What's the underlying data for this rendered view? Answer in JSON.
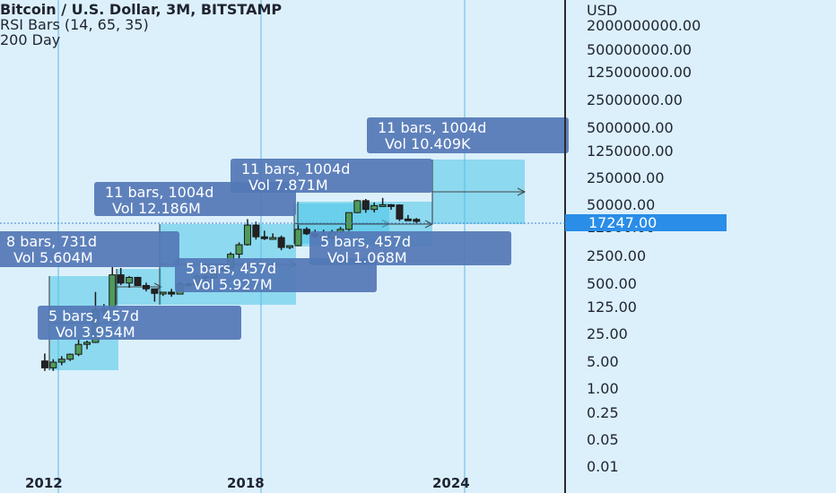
{
  "header": {
    "title": "Bitcoin / U.S. Dollar, 3M, BITSTAMP",
    "indicator": "RSI Bars (14, 65, 35)",
    "ma": "200 Day"
  },
  "price_axis": {
    "currency": "USD",
    "labels": [
      "2000000000.00",
      "500000000.00",
      "125000000.00",
      "25000000.00",
      "5000000.00",
      "1250000.00",
      "250000.00",
      "50000.00",
      "12500.00",
      "2500.00",
      "500.00",
      "125.00",
      "25.00",
      "5.00",
      "1.00",
      "0.25",
      "0.05",
      "0.01"
    ],
    "current_price": "17247.00",
    "scale": "log"
  },
  "time_axis": {
    "labels": [
      "2012",
      "2018",
      "2024"
    ]
  },
  "colors": {
    "background": "#dcf0fb",
    "range_fill": "#4cc6e6",
    "label_box": "#5478b7",
    "price_tag": "#2a8de8",
    "candle": "#1a1a1a",
    "vline": "#9fd3ee"
  },
  "chart_data": {
    "type": "candlestick",
    "title": "Bitcoin / U.S. Dollar, 3M, BITSTAMP",
    "scale": "log",
    "ylim": [
      0.01,
      2000000000
    ],
    "last_price": 17247,
    "candles": [
      {
        "t": 2011.6,
        "o": 4.5,
        "h": 7,
        "l": 2.5,
        "c": 3
      },
      {
        "t": 2011.85,
        "o": 3,
        "h": 5,
        "l": 2.5,
        "c": 4.2
      },
      {
        "t": 2012.1,
        "o": 4.2,
        "h": 6,
        "l": 3.5,
        "c": 5
      },
      {
        "t": 2012.35,
        "o": 5,
        "h": 7,
        "l": 4.5,
        "c": 6.7
      },
      {
        "t": 2012.6,
        "o": 6.7,
        "h": 16,
        "l": 6,
        "c": 12
      },
      {
        "t": 2012.85,
        "o": 12,
        "h": 15,
        "l": 9,
        "c": 13.5
      },
      {
        "t": 2013.1,
        "o": 13.5,
        "h": 266,
        "l": 13,
        "c": 93
      },
      {
        "t": 2013.35,
        "o": 93,
        "h": 130,
        "l": 65,
        "c": 97
      },
      {
        "t": 2013.6,
        "o": 97,
        "h": 1163,
        "l": 90,
        "c": 732
      },
      {
        "t": 2013.85,
        "o": 732,
        "h": 1100,
        "l": 400,
        "c": 450
      },
      {
        "t": 2014.1,
        "o": 450,
        "h": 680,
        "l": 340,
        "c": 630
      },
      {
        "t": 2014.35,
        "o": 630,
        "h": 650,
        "l": 380,
        "c": 390
      },
      {
        "t": 2014.6,
        "o": 390,
        "h": 460,
        "l": 275,
        "c": 320
      },
      {
        "t": 2014.85,
        "o": 320,
        "h": 320,
        "l": 150,
        "c": 245
      },
      {
        "t": 2015.1,
        "o": 245,
        "h": 265,
        "l": 210,
        "c": 263
      },
      {
        "t": 2015.35,
        "o": 263,
        "h": 320,
        "l": 200,
        "c": 235
      },
      {
        "t": 2015.6,
        "o": 235,
        "h": 500,
        "l": 230,
        "c": 430
      },
      {
        "t": 2015.85,
        "o": 430,
        "h": 460,
        "l": 360,
        "c": 415
      },
      {
        "t": 2016.1,
        "o": 415,
        "h": 780,
        "l": 410,
        "c": 673
      },
      {
        "t": 2016.35,
        "o": 673,
        "h": 770,
        "l": 470,
        "c": 608
      },
      {
        "t": 2016.6,
        "o": 608,
        "h": 990,
        "l": 600,
        "c": 963
      },
      {
        "t": 2016.85,
        "o": 963,
        "h": 1350,
        "l": 890,
        "c": 1080
      },
      {
        "t": 2017.1,
        "o": 1080,
        "h": 2790,
        "l": 1080,
        "c": 2480
      },
      {
        "t": 2017.35,
        "o": 2480,
        "h": 4980,
        "l": 1830,
        "c": 4340
      },
      {
        "t": 2017.6,
        "o": 4340,
        "h": 19700,
        "l": 4120,
        "c": 13880
      },
      {
        "t": 2017.85,
        "o": 13880,
        "h": 17000,
        "l": 5900,
        "c": 6930
      },
      {
        "t": 2018.1,
        "o": 6930,
        "h": 9990,
        "l": 5750,
        "c": 6390
      },
      {
        "t": 2018.35,
        "o": 6390,
        "h": 8500,
        "l": 5880,
        "c": 6630
      },
      {
        "t": 2018.6,
        "o": 6630,
        "h": 7460,
        "l": 3150,
        "c": 3700
      },
      {
        "t": 2018.85,
        "o": 3700,
        "h": 4200,
        "l": 3350,
        "c": 4110
      },
      {
        "t": 2019.1,
        "o": 4110,
        "h": 13880,
        "l": 4050,
        "c": 10800
      },
      {
        "t": 2019.35,
        "o": 10800,
        "h": 12300,
        "l": 7700,
        "c": 8300
      },
      {
        "t": 2019.6,
        "o": 8300,
        "h": 10540,
        "l": 6400,
        "c": 7200
      },
      {
        "t": 2019.85,
        "o": 7200,
        "h": 10500,
        "l": 3850,
        "c": 6420
      },
      {
        "t": 2020.1,
        "o": 6420,
        "h": 10430,
        "l": 6150,
        "c": 9140
      },
      {
        "t": 2020.35,
        "o": 9140,
        "h": 12470,
        "l": 9000,
        "c": 10780
      },
      {
        "t": 2020.6,
        "o": 10780,
        "h": 29300,
        "l": 9800,
        "c": 28990
      },
      {
        "t": 2020.85,
        "o": 28990,
        "h": 61780,
        "l": 28130,
        "c": 58780
      },
      {
        "t": 2021.1,
        "o": 58780,
        "h": 64900,
        "l": 28800,
        "c": 35040
      },
      {
        "t": 2021.35,
        "o": 35040,
        "h": 52900,
        "l": 29300,
        "c": 43800
      },
      {
        "t": 2021.6,
        "o": 43800,
        "h": 69000,
        "l": 40600,
        "c": 46200
      },
      {
        "t": 2021.85,
        "o": 46200,
        "h": 48200,
        "l": 34300,
        "c": 45500
      },
      {
        "t": 2022.1,
        "o": 45500,
        "h": 47400,
        "l": 17600,
        "c": 19900
      },
      {
        "t": 2022.35,
        "o": 19900,
        "h": 25200,
        "l": 18200,
        "c": 19400
      },
      {
        "t": 2022.6,
        "o": 19400,
        "h": 21000,
        "l": 15500,
        "c": 17247
      }
    ],
    "ranges": [
      {
        "bars": "8 bars, 731d",
        "vol": "Vol 5.604M"
      },
      {
        "bars": "5 bars, 457d",
        "vol": "Vol 3.954M"
      },
      {
        "bars": "11 bars, 1004d",
        "vol": "Vol 12.186M"
      },
      {
        "bars": "5 bars, 457d",
        "vol": "Vol 5.927M"
      },
      {
        "bars": "11 bars, 1004d",
        "vol": "Vol 7.871M"
      },
      {
        "bars": "5 bars, 457d",
        "vol": "Vol 1.068M"
      },
      {
        "bars": "11 bars, 1004d",
        "vol": "Vol 10.409K"
      }
    ]
  }
}
